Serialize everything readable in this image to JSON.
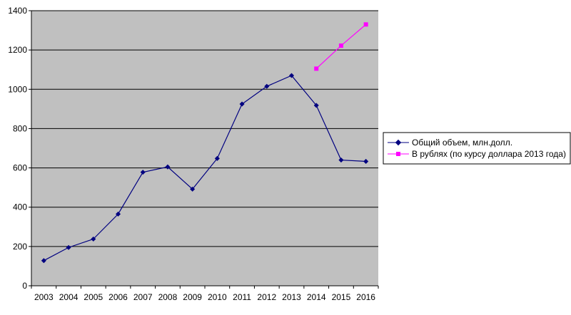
{
  "chart_data": {
    "type": "line",
    "title": "",
    "xlabel": "",
    "ylabel": "",
    "x": [
      "2003",
      "2004",
      "2005",
      "2006",
      "2007",
      "2008",
      "2009",
      "2010",
      "2011",
      "2012",
      "2013",
      "2014",
      "2015",
      "2016"
    ],
    "ylim": [
      0,
      1400
    ],
    "yticks": [
      0,
      200,
      400,
      600,
      800,
      1000,
      1200,
      1400
    ],
    "grid": true,
    "legend_position": "right",
    "plot_background": "#c0c0c0",
    "series": [
      {
        "name": "Общий объем, млн.долл.",
        "color": "#000080",
        "marker": "diamond",
        "values": [
          128,
          195,
          238,
          365,
          578,
          605,
          492,
          648,
          925,
          1015,
          1070,
          918,
          640,
          633
        ]
      },
      {
        "name": "В рублях (по курсу доллара 2013 года)",
        "color": "#ff00ff",
        "marker": "square",
        "values": [
          null,
          null,
          null,
          null,
          null,
          null,
          null,
          null,
          null,
          null,
          null,
          1105,
          1222,
          1330
        ]
      }
    ]
  }
}
